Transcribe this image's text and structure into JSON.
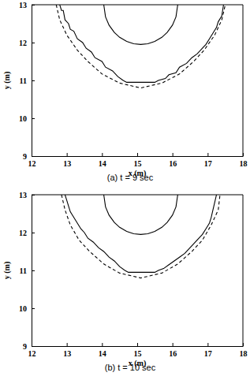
{
  "chart_data": [
    {
      "type": "line",
      "title": "(a) t = 9 sec",
      "x_label": "x (m)",
      "y_label": "y (m)",
      "xlim": [
        12,
        18
      ],
      "ylim": [
        9,
        13
      ],
      "xticks": [
        12,
        13,
        14,
        15,
        16,
        17,
        18
      ],
      "yticks": [
        9,
        10,
        11,
        12,
        13
      ],
      "series": [
        {
          "color": "#000000",
          "line_style": "solid",
          "x": [
            14.05,
            14.1,
            14.2,
            14.35,
            14.5,
            14.7,
            14.9,
            15.1,
            15.3,
            15.5,
            15.7,
            15.85,
            16.0,
            16.1,
            16.15
          ],
          "values": [
            13.0,
            12.68,
            12.46,
            12.27,
            12.14,
            12.03,
            11.97,
            11.95,
            11.97,
            12.03,
            12.14,
            12.27,
            12.46,
            12.68,
            13.0
          ]
        },
        {
          "color": "#000000",
          "line_style": "solid",
          "x": [
            12.8,
            12.85,
            12.9,
            12.95,
            13.05,
            13.1,
            13.2,
            13.3,
            13.45,
            13.55,
            13.7,
            13.8,
            14.0,
            14.1,
            14.3,
            14.45,
            14.6,
            14.7,
            15.5,
            15.6,
            15.8,
            15.9,
            16.1,
            16.2,
            16.4,
            16.55,
            16.7,
            16.85,
            16.95,
            17.05,
            17.15,
            17.25,
            17.3,
            17.4,
            17.45
          ],
          "values": [
            13.0,
            12.85,
            12.85,
            12.6,
            12.5,
            12.35,
            12.3,
            12.1,
            12.0,
            11.85,
            11.75,
            11.6,
            11.5,
            11.35,
            11.25,
            11.1,
            11.0,
            10.95,
            10.95,
            11.0,
            11.05,
            11.15,
            11.2,
            11.35,
            11.45,
            11.6,
            11.7,
            11.85,
            11.95,
            12.1,
            12.25,
            12.4,
            12.55,
            12.7,
            13.0
          ]
        },
        {
          "color": "#000000",
          "line_style": "dashed",
          "x": [
            12.7,
            12.8,
            13.0,
            13.3,
            13.6,
            14.0,
            14.5,
            15.1,
            15.7,
            16.2,
            16.6,
            16.9,
            17.2,
            17.4,
            17.5
          ],
          "values": [
            13.0,
            12.6,
            12.2,
            11.8,
            11.5,
            11.17,
            10.93,
            10.8,
            10.93,
            11.17,
            11.5,
            11.8,
            12.2,
            12.6,
            13.0
          ]
        }
      ]
    },
    {
      "type": "line",
      "title": "(b) t = 10 sec",
      "x_label": "x (m)",
      "y_label": "y (m)",
      "xlim": [
        12,
        18
      ],
      "ylim": [
        9,
        13
      ],
      "xticks": [
        12,
        13,
        14,
        15,
        16,
        17,
        18
      ],
      "yticks": [
        9,
        10,
        11,
        12,
        13
      ],
      "series": [
        {
          "color": "#000000",
          "line_style": "solid",
          "x": [
            14.05,
            14.1,
            14.2,
            14.35,
            14.5,
            14.7,
            14.9,
            15.1,
            15.3,
            15.5,
            15.7,
            15.85,
            16.0,
            16.1,
            16.15
          ],
          "values": [
            13.0,
            12.68,
            12.46,
            12.27,
            12.14,
            12.03,
            11.97,
            11.95,
            11.97,
            12.03,
            12.14,
            12.27,
            12.46,
            12.68,
            13.0
          ]
        },
        {
          "color": "#000000",
          "line_style": "solid",
          "x": [
            12.95,
            13.0,
            13.05,
            13.1,
            13.2,
            13.3,
            13.4,
            13.5,
            13.6,
            13.75,
            13.9,
            14.05,
            14.2,
            14.35,
            14.5,
            14.65,
            14.75,
            15.5,
            15.6,
            15.75,
            15.9,
            16.05,
            16.2,
            16.35,
            16.5,
            16.6,
            16.75,
            16.85,
            16.95,
            17.05,
            17.1,
            17.15,
            17.2,
            17.25
          ],
          "values": [
            13.0,
            12.85,
            12.7,
            12.55,
            12.4,
            12.25,
            12.1,
            12.0,
            11.85,
            11.75,
            11.6,
            11.5,
            11.35,
            11.25,
            11.1,
            11.0,
            10.95,
            10.95,
            11.0,
            11.05,
            11.15,
            11.25,
            11.35,
            11.45,
            11.6,
            11.7,
            11.85,
            11.95,
            12.1,
            12.25,
            12.4,
            12.6,
            12.8,
            13.0
          ]
        },
        {
          "color": "#000000",
          "line_style": "dashed",
          "x": [
            12.85,
            12.95,
            13.1,
            13.35,
            13.65,
            14.05,
            14.5,
            15.1,
            15.7,
            16.15,
            16.55,
            16.85,
            17.1,
            17.3,
            17.35
          ],
          "values": [
            13.0,
            12.6,
            12.2,
            11.8,
            11.5,
            11.17,
            10.93,
            10.8,
            10.93,
            11.17,
            11.5,
            11.8,
            12.2,
            12.6,
            13.0
          ]
        }
      ]
    }
  ]
}
